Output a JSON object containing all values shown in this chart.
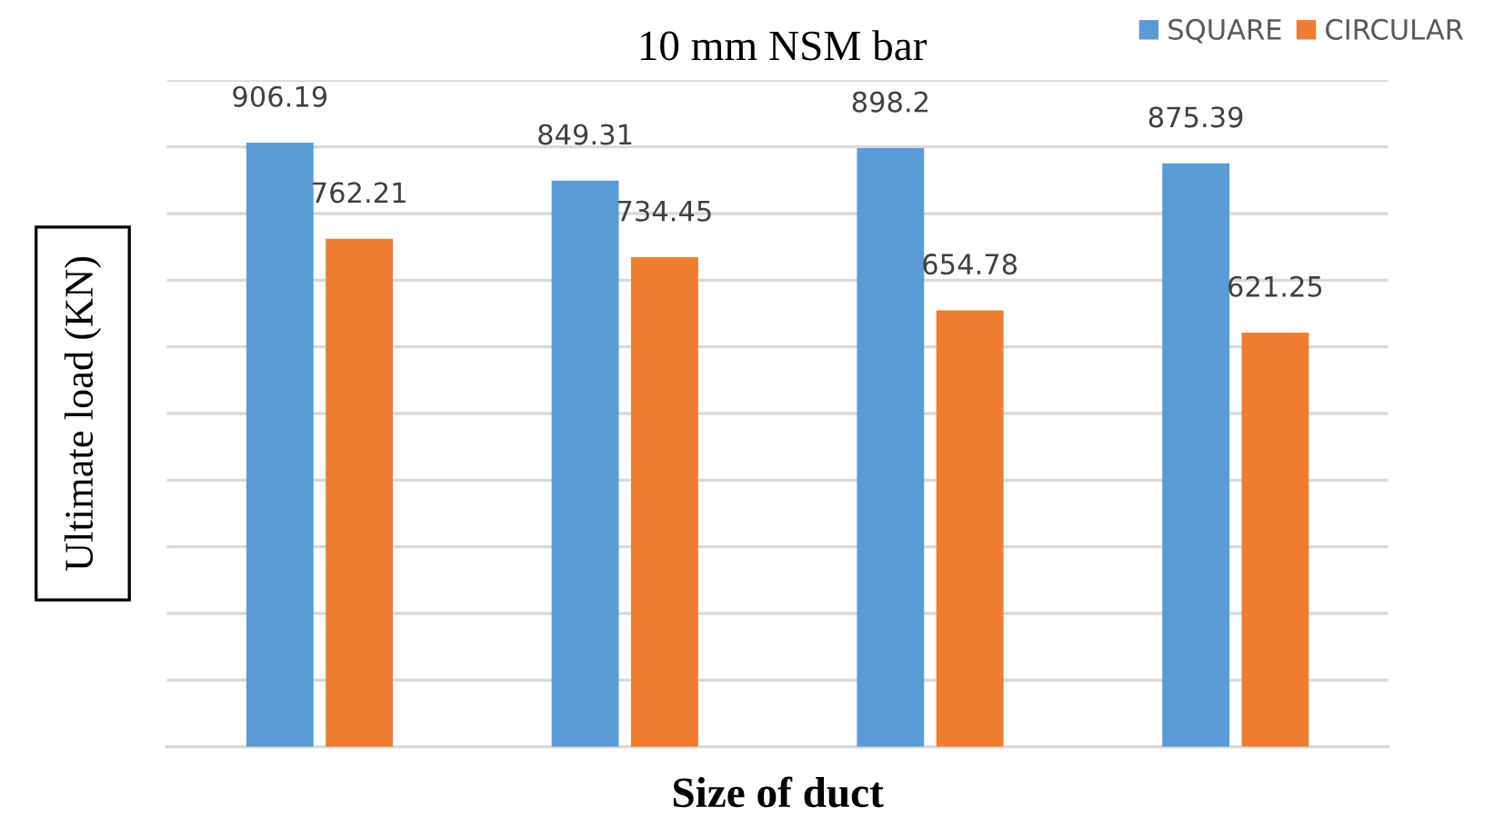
{
  "chart_data": {
    "type": "bar",
    "title": "10 mm NSM bar",
    "xlabel": "Size of duct",
    "ylabel": "Ultimate load (KN)",
    "categories": [
      null,
      null,
      null,
      null
    ],
    "series": [
      {
        "name": "SQUARE",
        "color": "#5b9bd5",
        "values": [
          906.19,
          849.31,
          898.2,
          875.39
        ]
      },
      {
        "name": "CIRCULAR",
        "color": "#ed7d31",
        "values": [
          762.21,
          734.45,
          654.78,
          621.25
        ]
      }
    ],
    "ylim": [
      0,
      1000
    ],
    "yticks": [
      {
        "value": 0,
        "label": null
      },
      {
        "value": 100,
        "label": null
      },
      {
        "value": 200,
        "label": null
      },
      {
        "value": 300,
        "label": null
      },
      {
        "value": 400,
        "label": null
      },
      {
        "value": 500,
        "label": null
      },
      {
        "value": 600,
        "label": null
      },
      {
        "value": 700,
        "label": null
      },
      {
        "value": 800,
        "label": null
      },
      {
        "value": 900,
        "label": null
      },
      {
        "value": 1000,
        "label": null
      }
    ],
    "grid": "y",
    "legend": "top right",
    "data_labels": true,
    "tick_labels": false
  }
}
